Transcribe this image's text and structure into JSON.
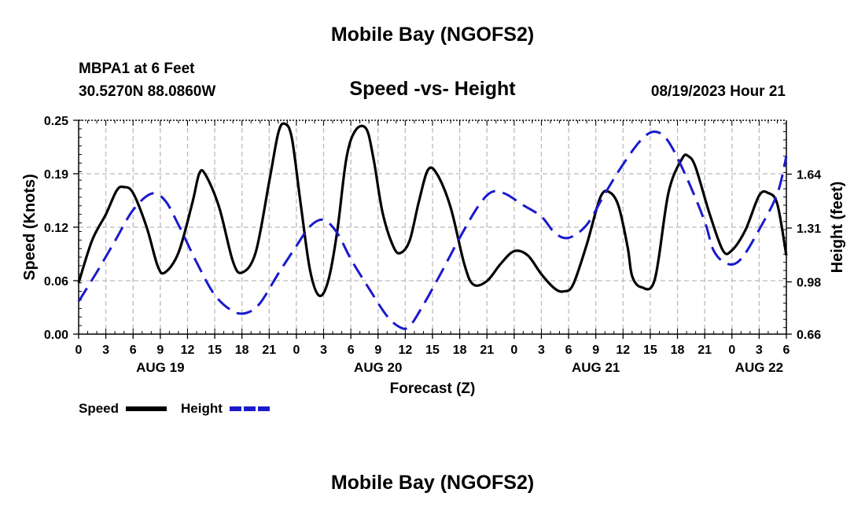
{
  "header": {
    "title": "Mobile Bay (NGOFS2)",
    "station": "MBPA1 at 6 Feet",
    "coords": "30.5270N  88.0860W",
    "chart_title": "Speed -vs- Height",
    "datetime": "08/19/2023 Hour 21"
  },
  "footer": {
    "title": "Mobile Bay (NGOFS2)"
  },
  "colors": {
    "speed": "#000000",
    "height": "#1a1acc",
    "grid": "#bbbbbb"
  },
  "chart_data": {
    "type": "line",
    "title": "Speed -vs- Height",
    "xlabel": "Forecast (Z)",
    "ylabel": "Speed (Knots)",
    "y2label": "Height (feet)",
    "xlim": [
      0,
      78
    ],
    "ylim": [
      0,
      0.25
    ],
    "y2lim": [
      0.66,
      1.97
    ],
    "x_ticks": [
      0,
      3,
      6,
      9,
      12,
      15,
      18,
      21,
      24,
      27,
      30,
      33,
      36,
      39,
      42,
      45,
      48,
      51,
      54,
      57,
      60,
      63,
      66,
      69,
      72,
      75,
      78
    ],
    "x_tick_labels": [
      "0",
      "3",
      "6",
      "9",
      "12",
      "15",
      "18",
      "21",
      "0",
      "3",
      "6",
      "9",
      "12",
      "15",
      "18",
      "21",
      "0",
      "3",
      "6",
      "9",
      "12",
      "15",
      "18",
      "21",
      "0",
      "3",
      "6"
    ],
    "date_labels": [
      {
        "x": 9,
        "label": "AUG 19"
      },
      {
        "x": 33,
        "label": "AUG 20"
      },
      {
        "x": 57,
        "label": "AUG 21"
      },
      {
        "x": 75,
        "label": "AUG 22"
      }
    ],
    "y_ticks": [
      0,
      0.0625,
      0.125,
      0.1875,
      0.25
    ],
    "y_tick_labels": [
      "0.00",
      "0.06",
      "0.12",
      "0.19",
      "0.25"
    ],
    "y2_ticks": [
      0.66,
      0.98,
      1.31,
      1.64
    ],
    "y2_tick_labels": [
      "0.66",
      "0.98",
      "1.31",
      "1.64"
    ],
    "legend": {
      "speed": "Speed",
      "height": "Height",
      "position": "bottom-left"
    },
    "series": [
      {
        "name": "Speed",
        "axis": "left",
        "style": "solid",
        "x": [
          0,
          1.5,
          3,
          4.2,
          5,
          6,
          7.5,
          8.7,
          9.5,
          11,
          12.5,
          13.3,
          14,
          15.5,
          17,
          18,
          19.5,
          21,
          22,
          22.7,
          23.5,
          24.5,
          25.5,
          26.5,
          27.5,
          28.5,
          29.5,
          30.5,
          31.7,
          32.5,
          33.5,
          34.7,
          35.5,
          36.5,
          37.5,
          38.5,
          39.5,
          41,
          42.5,
          43.5,
          45,
          46.5,
          48,
          49.5,
          51,
          52.5,
          53.5,
          54.5,
          56,
          57.5,
          58.5,
          59.5,
          60.5,
          61,
          62,
          63.5,
          65,
          66.5,
          67.2,
          68,
          69.5,
          71,
          72,
          73.5,
          75,
          76,
          77,
          78
        ],
        "y": [
          0.06,
          0.11,
          0.14,
          0.168,
          0.172,
          0.165,
          0.125,
          0.08,
          0.072,
          0.095,
          0.152,
          0.188,
          0.186,
          0.148,
          0.085,
          0.072,
          0.095,
          0.178,
          0.235,
          0.246,
          0.229,
          0.15,
          0.075,
          0.045,
          0.062,
          0.12,
          0.205,
          0.238,
          0.24,
          0.205,
          0.142,
          0.102,
          0.095,
          0.11,
          0.155,
          0.192,
          0.187,
          0.148,
          0.082,
          0.058,
          0.062,
          0.082,
          0.097,
          0.092,
          0.07,
          0.053,
          0.05,
          0.058,
          0.105,
          0.16,
          0.166,
          0.15,
          0.102,
          0.068,
          0.055,
          0.064,
          0.165,
          0.205,
          0.208,
          0.195,
          0.142,
          0.098,
          0.098,
          0.122,
          0.162,
          0.165,
          0.152,
          0.092
        ]
      },
      {
        "name": "Height",
        "axis": "right",
        "style": "dashed",
        "x": [
          0,
          2,
          4,
          6,
          8,
          9.5,
          11,
          13,
          15,
          17,
          18.5,
          20,
          22,
          24,
          25.5,
          27,
          28.5,
          30,
          32,
          34,
          35.5,
          36.5,
          38,
          40,
          42,
          44,
          45.5,
          47,
          49,
          51,
          52.5,
          54,
          56,
          58,
          60,
          62,
          63.5,
          65,
          67,
          69,
          70,
          71.5,
          73,
          75,
          77,
          78
        ],
        "y": [
          0.86,
          1.04,
          1.23,
          1.42,
          1.52,
          1.48,
          1.33,
          1.1,
          0.9,
          0.8,
          0.79,
          0.85,
          1.03,
          1.2,
          1.32,
          1.36,
          1.28,
          1.12,
          0.94,
          0.77,
          0.7,
          0.71,
          0.84,
          1.04,
          1.25,
          1.44,
          1.53,
          1.52,
          1.45,
          1.38,
          1.28,
          1.25,
          1.33,
          1.52,
          1.7,
          1.85,
          1.9,
          1.84,
          1.62,
          1.35,
          1.17,
          1.09,
          1.12,
          1.3,
          1.52,
          1.75
        ]
      }
    ]
  }
}
